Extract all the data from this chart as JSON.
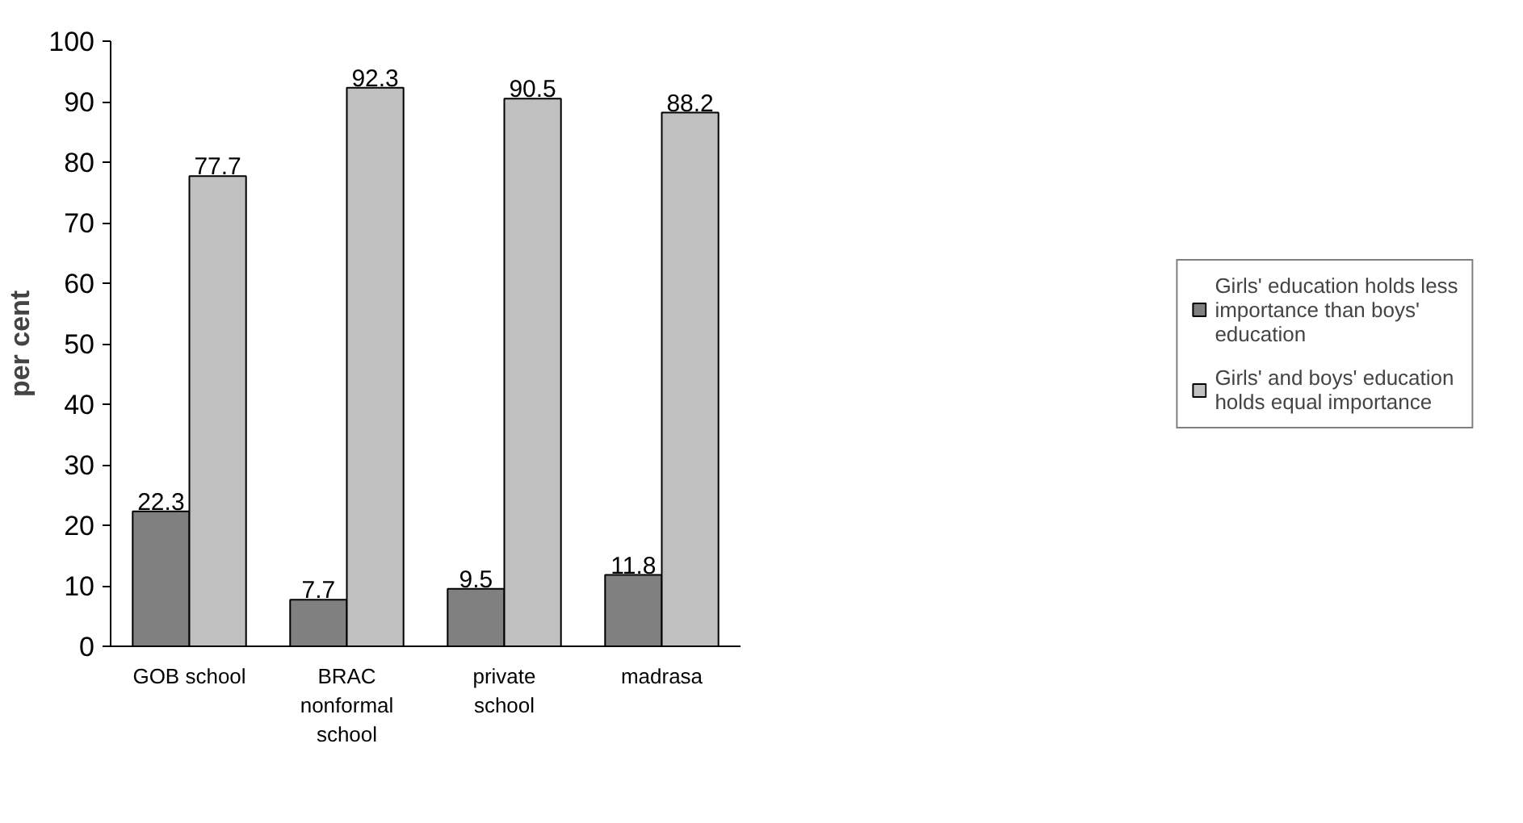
{
  "chart_data": {
    "type": "bar",
    "ylabel": "per cent",
    "categories": [
      "GOB school",
      "BRAC nonformal school",
      "private school",
      "madrasa"
    ],
    "series": [
      {
        "name": "Girls' education holds less importance than boys' education",
        "color": "#808080",
        "values": [
          22.3,
          7.7,
          9.5,
          11.8
        ]
      },
      {
        "name": "Girls' and boys' education holds equal importance",
        "color": "#c0c0c0",
        "values": [
          77.7,
          92.3,
          90.5,
          88.2
        ]
      }
    ],
    "ylim": [
      0,
      100
    ],
    "yticks": [
      0,
      10,
      20,
      30,
      40,
      50,
      60,
      70,
      80,
      90,
      100
    ],
    "grid": false,
    "legend": "right",
    "data_labels": true
  }
}
